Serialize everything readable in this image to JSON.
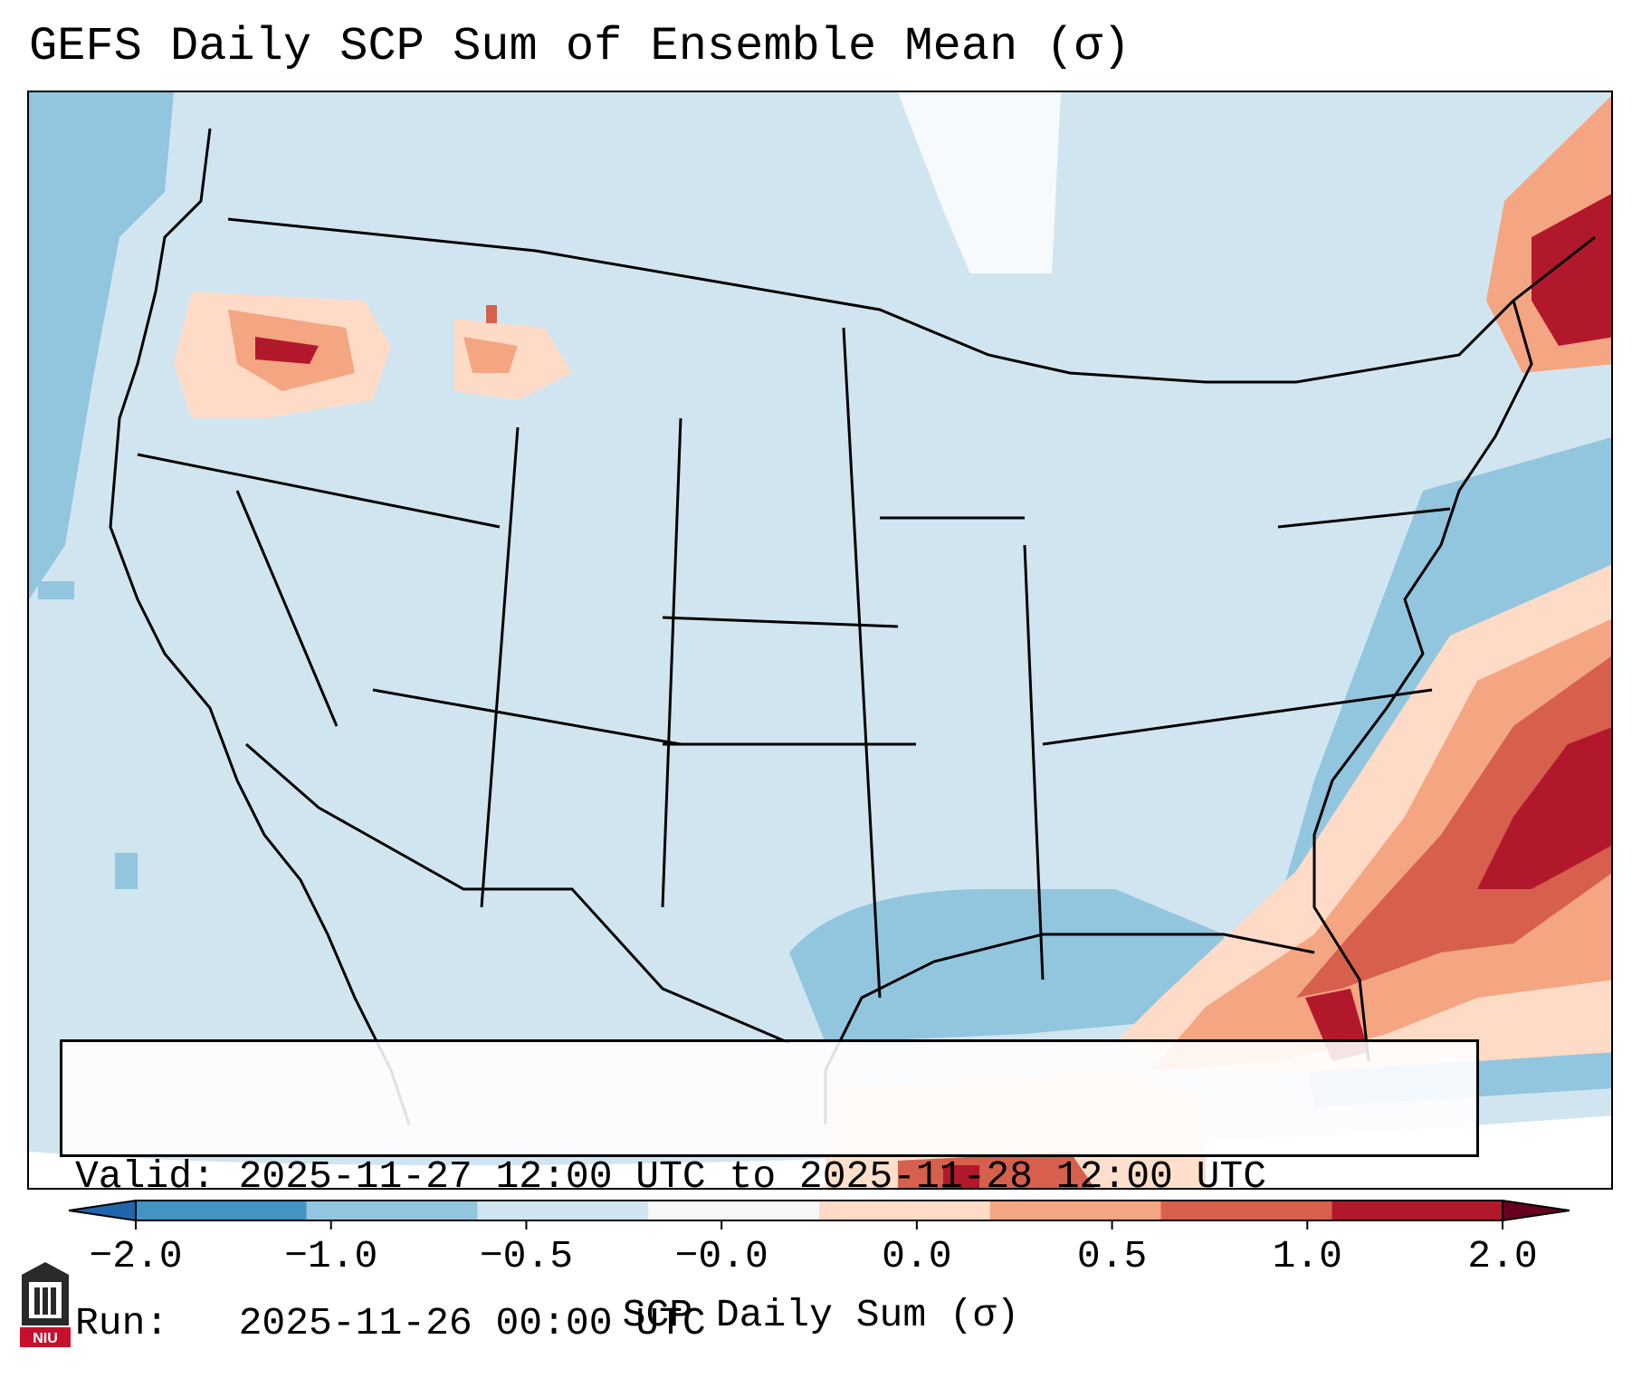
{
  "title": "GEFS Daily SCP Sum of Ensemble Mean (σ)",
  "valid_box": {
    "valid_line": "Valid: 2025-11-27 12:00 UTC to 2025-11-28 12:00 UTC",
    "run_line": "Run:   2025-11-26 00:00 UTC"
  },
  "colorbar": {
    "label": "SCP Daily Sum (σ)",
    "tick_labels": [
      "−2.0",
      "−1.0",
      "−0.5",
      "−0.0",
      "0.0",
      "0.5",
      "1.0",
      "2.0"
    ],
    "colors": [
      "#4393c3",
      "#92c5de",
      "#d1e5f0",
      "#f7f7f7",
      "#fddbc7",
      "#f4a582",
      "#d6604d",
      "#b2182b"
    ],
    "extend": "both"
  },
  "map": {
    "projection": "Lambert conformal",
    "domain": "Contiguous United States",
    "background_color": "#d1e5f0",
    "features": [
      "coastlines",
      "state-borders",
      "country-borders",
      "shaded-scp-anomaly-field"
    ]
  },
  "logo": {
    "text": "NIU",
    "icon": "university-building-icon",
    "color": "#c8102e"
  }
}
